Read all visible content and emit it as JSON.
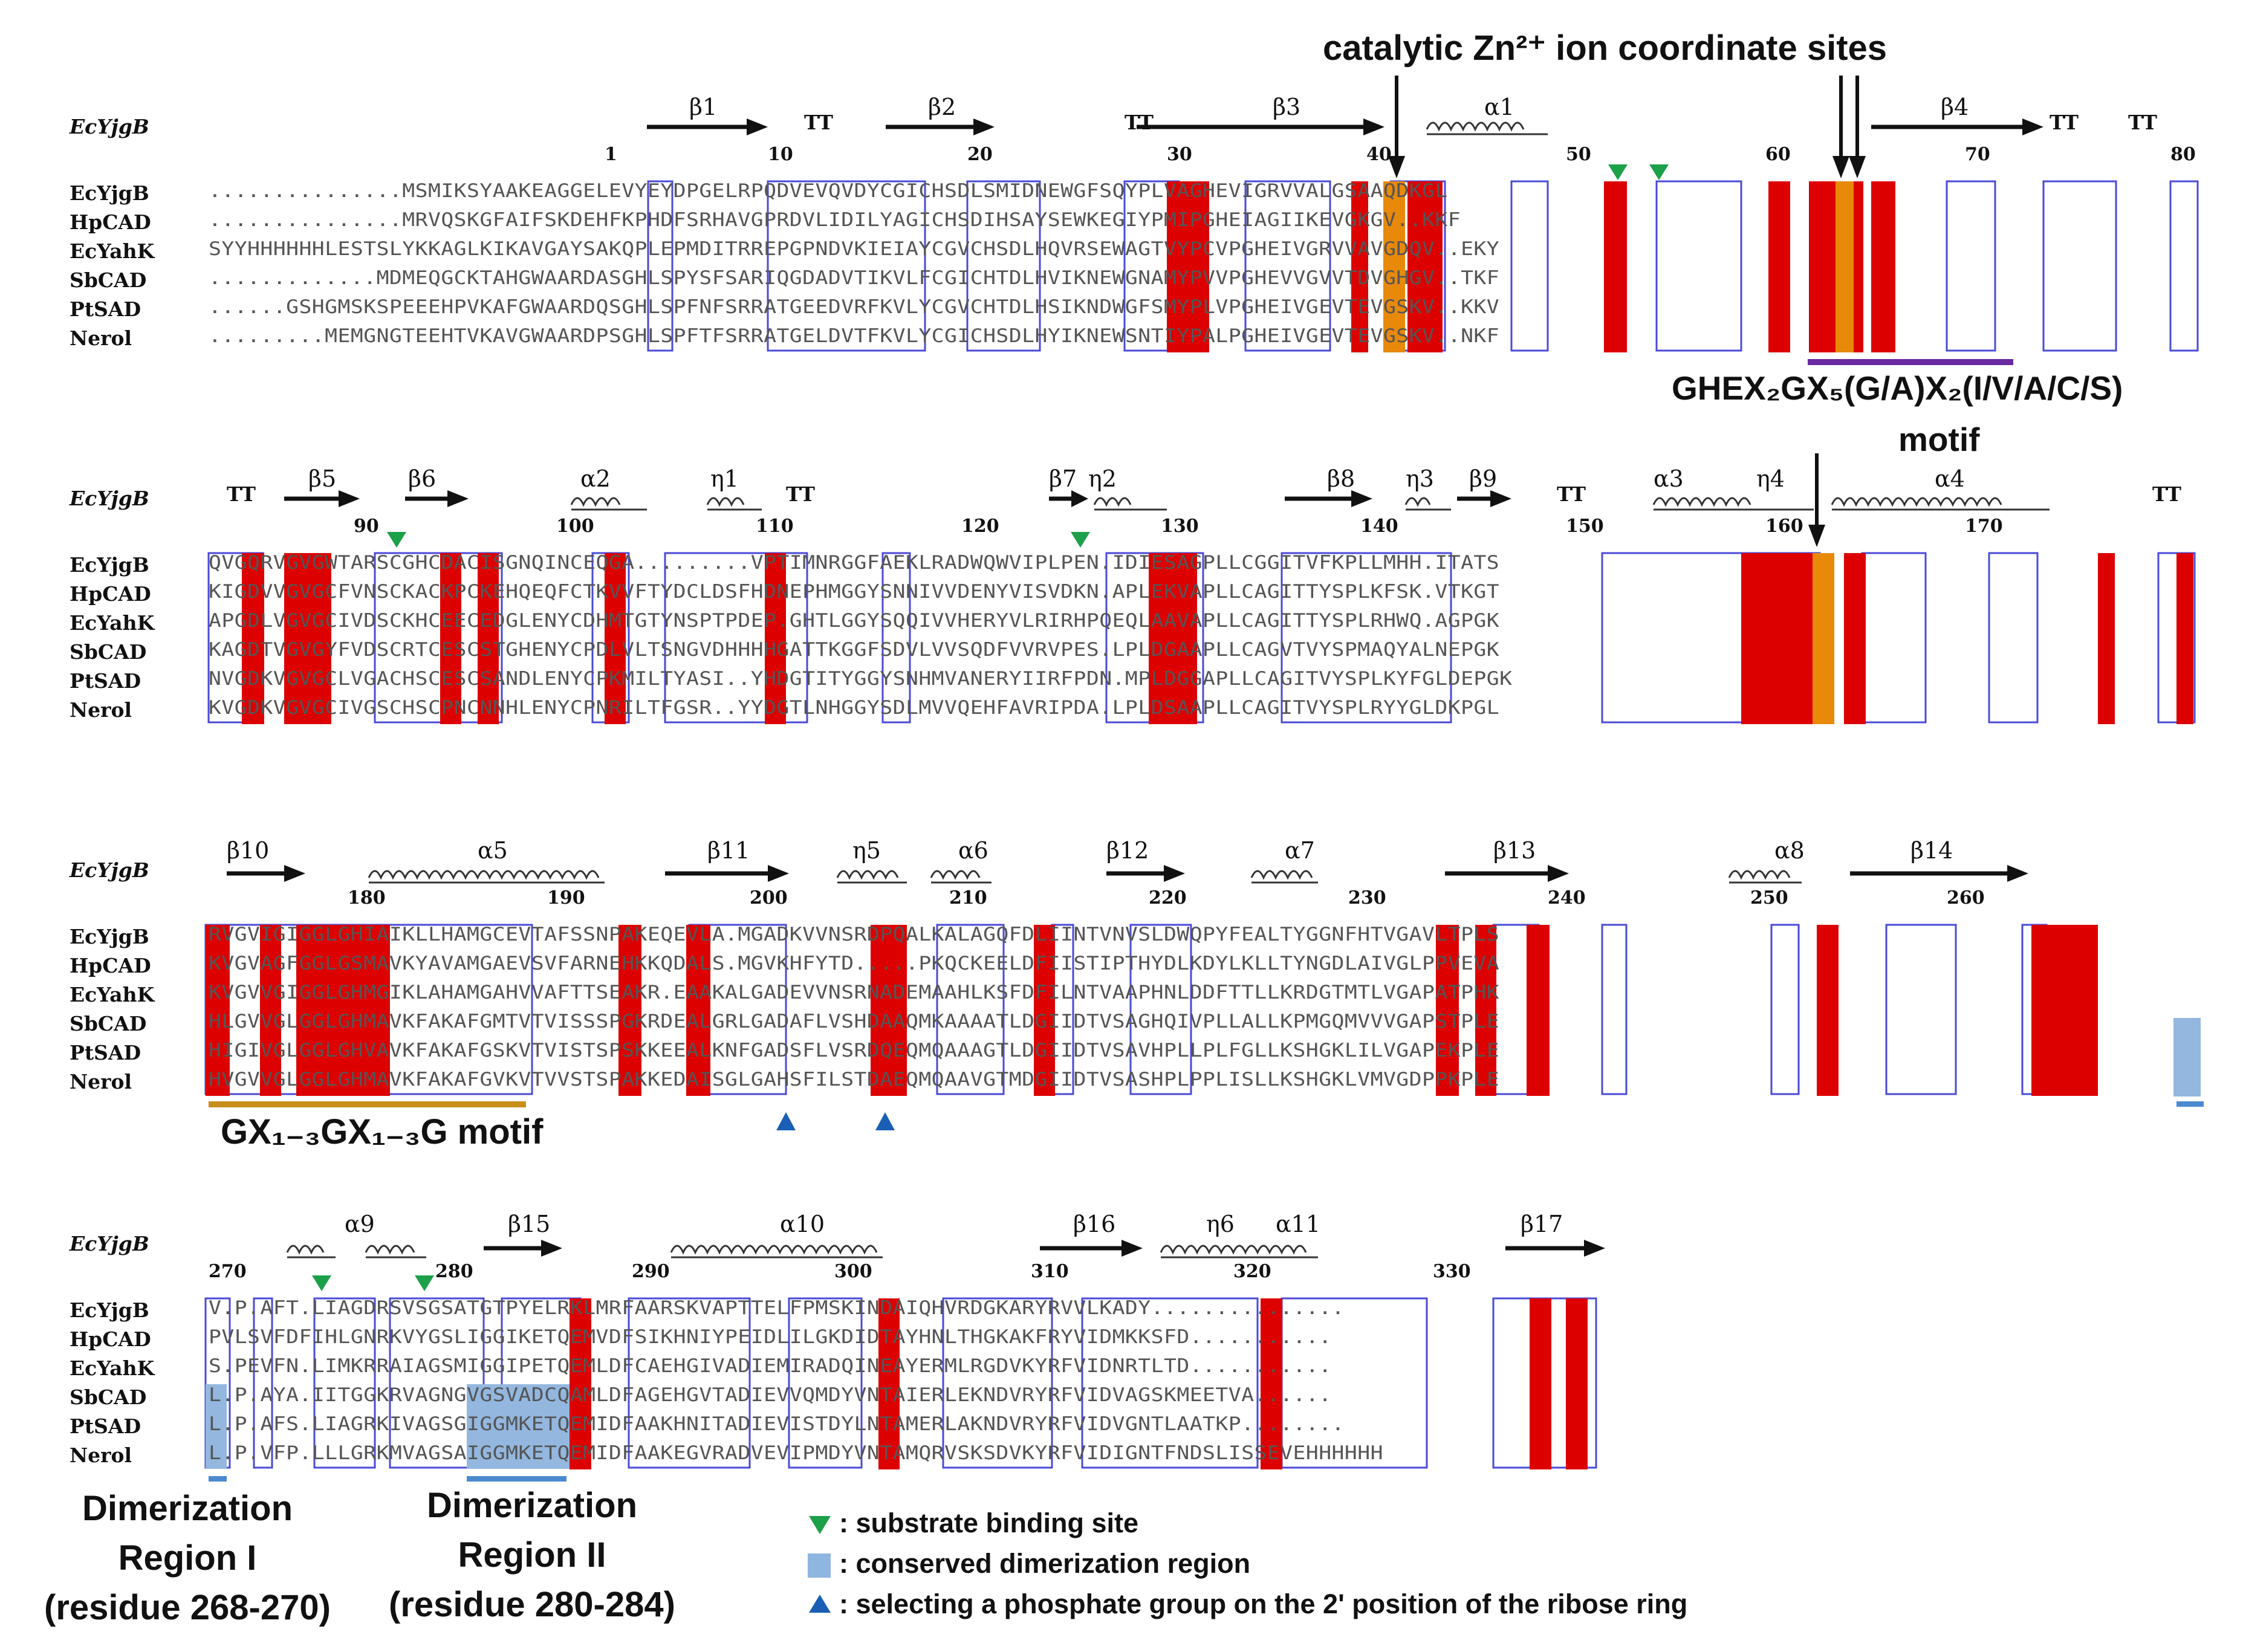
{
  "header": {
    "zn_sites": "catalytic Zn²⁺ ion coordinate sites",
    "ghex_motif": "GHEX₂GX₅(G/A)X₂(I/V/A/C/S)",
    "ghex_motif_word": "motif",
    "gx_motif": "GX₁₋₃GX₁₋₃G motif"
  },
  "dimer": {
    "region1": [
      "Dimerization",
      "Region I",
      "(residue 268-270)"
    ],
    "region2": [
      "Dimerization",
      "Region II",
      "(residue 280-284)"
    ]
  },
  "legend": {
    "substrate": ": substrate binding site",
    "dimer": ": conserved dimerization region",
    "phosphate": ": selecting a phosphate group on the 2' position of the ribose ring"
  },
  "ref_name": "EcYjgB",
  "names": [
    "EcYjgB",
    "HpCAD",
    "EcYahK",
    "SbCAD",
    "PtSAD",
    "Nerol"
  ],
  "blocks": [
    {
      "ruler": [
        "1",
        "10",
        "20",
        "30",
        "40",
        "50",
        "60",
        "70",
        "80"
      ],
      "ss": [
        "β1",
        "TT",
        "β2",
        "TT",
        "β3",
        "α1",
        "β4",
        "TT",
        "TT"
      ],
      "rows": [
        "...............MSMIKSYAAKEAGGELEVYEYDPGELRPQDVEVQVDYCGICHSDLSMIDNEWGFSQYPLVAGHEVIGRVVALGSAAQDKGL",
        "...............MRVQSKGFAIFSKDEHFKPHDFSRHAVGPRDVLIDILYAGICHSDIHSAYSEWKEGIYPMIPGHEIAGIIKEVGKGV..KKF",
        "SYYHHHHHHLESTSLYKKAGLKIKAVGAYSAKQPLEPMDITRREPGPNDVKIEIAYCGVCHSDLHQVRSEWAGTVYPCVPGHEIVGRVVAVGDQV..EKY",
        ".............MDMEQGCKTAHGWAARDASGHLSPYSFSARIQGDADVTIKVLFCGICHTDLHVIKNEWGNAMYPVVPGHEVVGVVTDVGHGV..TKF",
        "......GSHGMSKSPEEEHPVKAFGWAARDQSGHLSPFNFSRRATGEEDVRFKVLYCGVCHTDLHSIKNDWGFSMYPLVPGHEIVGEVTEVGSKV..KKV",
        ".........MEMGNGTEEHTVKAVGWAARDPSGHLSPFTFSRRATGELDVTFKVLYCGICHSDLHYIKNEWSNTIYPALPGHEIVGEVTEVGSKV..NKF"
      ]
    },
    {
      "ruler": [
        "90",
        "100",
        "110",
        "120",
        "130",
        "140",
        "150",
        "160",
        "170"
      ],
      "ss": [
        "TT",
        "β5",
        "β6",
        "α2",
        "η1",
        "TT",
        "β7",
        "η2",
        "β8",
        "η3",
        "β9",
        "TT",
        "α3",
        "η4",
        "α4",
        "TT"
      ],
      "rows": [
        "QVGQRVGVGWTARSCGHCDACISGNQINCEQGA.........VPTIMNRGGFAEKLRADWQWVIPLPEN.IDIESAGPLLCGGITVFKPLLMHH.ITATS",
        "KIGDVVGVGCFVNSCKACKPCKEHQEQFCTKVVFTYDCLDSFHDNEPHMGGYSNNIVVDENYVISVDKN.APLEKVAPLLCAGITTYSPLKFSK.VTKGT",
        "APGDLVGVGCIVDSCKHCEECEDGLENYCDHMTGTYNSPTPDEP.GHTLGGYSQQIVVHERYVLRIRHPQEQLAAVAPLLCAGITTYSPLRHWQ.AGPGK",
        "KAGDTVGVGYFVDSCRTCESCSTGHENYCPDLVLTSNGVDHHHHGATTKGGFSDVLVVSQDFVVRVPES.LPLDGAAPLLCAGVTVYSPMAQYALNEPGK",
        "NVGDKVGVGCLVGACHSCESCSANDLENYCPKMILTYASI..YHDGTITYGGYSNHMVANERYIIRFPDN.MPLDGGAPLLCAGITVYSPLKYFGLDEPGK",
        "KVGDKVGVGCIVGSCHSCPNCNNHLENYCPNRILTFGSR..YYDGTLNHGGYSDLMVVQEHFAVRIPDA.LPLDSAAPLLCAGITVYSPLRYYGLDKPGL"
      ]
    },
    {
      "ruler": [
        "180",
        "190",
        "200",
        "210",
        "220",
        "230",
        "240",
        "250",
        "260"
      ],
      "ss": [
        "β10",
        "α5",
        "β11",
        "η5",
        "α6",
        "β12",
        "α7",
        "β13",
        "α8",
        "β14"
      ],
      "rows": [
        "RVGVIGIGGLGHIAIKLLHAMGCEVTAFSSNPAKEQEVLA.MGADKVVNSRDPQALKALAGQFDLIINTVNVSLDWQPYFEALTYGGNFHTVGAVLTPLS",
        "KVGVAGFGGLGSMAVKYAVAMGAEVSVFARNEHKKQDALS.MGVKHFYTD.....PKQCKEELDFIISTIPTHYDLKDYLKLLTYNGDLAIVGLPPVEVA",
        "KVGVVGIGGLGHMGIKLAHAMGAHVVAFTTSEAKR.EAAKALGADEVVNSRNADEMAAHLKSFDFILNTVAAPHNLDDFTTLLKRDGTMTLVGAPATPHK",
        "HLGVVGLGGLGHMAVKFAKAFGMTVTVISSSPGKRDEALGRLGADAFLVSHDAAQMKAAAATLDGIIDTVSAGHQIVPLLALLKPMGQMVVVGAPSTPLE",
        "HIGIVGLGGLGHVAVKFAKAFGSKVTVISTSPSKKEEALKNFGADSFLVSRDQEQMQAAAGTLDGIIDTVSAVHPLLPLFGLLKSHGKLILVGAPEKPLE",
        "HVGVVGLGGLGHMAVKFAKAFGVKVTVVSTSPAKKEDAISGLGAHSFILSTDAEQMQAAVGTMDGIIDTVSASHPLPPLISLLKSHGKLVMVGDPPKPLE"
      ]
    },
    {
      "ruler": [
        "270",
        "280",
        "290",
        "300",
        "310",
        "320",
        "330"
      ],
      "ss": [
        "α9",
        "β15",
        "α10",
        "β16",
        "η6",
        "α11",
        "β17"
      ],
      "rows": [
        "V.P.AFT.LIAGDRSVSGSATGTPYELRKLMRFAARSKVAPTTELFPMSKINDAIQHVRDGKARYRVVLKADY...............",
        "PVLSVFDFIHLGNRKVYGSLIGGIKETQEMVDFSIKHNIYPEIDLILGKDIDTAYHNLTHGKAKFRYVIDMKKSFD...........",
        "S.PEVFN.LIMKRRAIAGSMIGGIPETQEMLDFCAEHGIVADIEMIRADQINEAYERMLRGDVKYRFVIDNRTLTD...........",
        "L.P.AYA.IITGGKRVAGNGVGSVADCQAMLDFAGEHGVTADIEVVQMDYVNTAIERLEKNDVRYRFVIDVAGSKMEETVA......",
        "L.P.AFS.LIAGRKIVAGSGIGGMKETQEMIDFAAKHNITADIEVISTDYLNTAMERLAKNDVRYRFVIDVGNTLAATKP........",
        "L.P.VFP.LLLGRKMVAGSAIGGMKETQEMIDFAAKEGVRADVEVIPMDYVNTAMQRVSKSDVKYRFVIDIGNTFNDSLISSEVEHHHHHH"
      ]
    }
  ]
}
